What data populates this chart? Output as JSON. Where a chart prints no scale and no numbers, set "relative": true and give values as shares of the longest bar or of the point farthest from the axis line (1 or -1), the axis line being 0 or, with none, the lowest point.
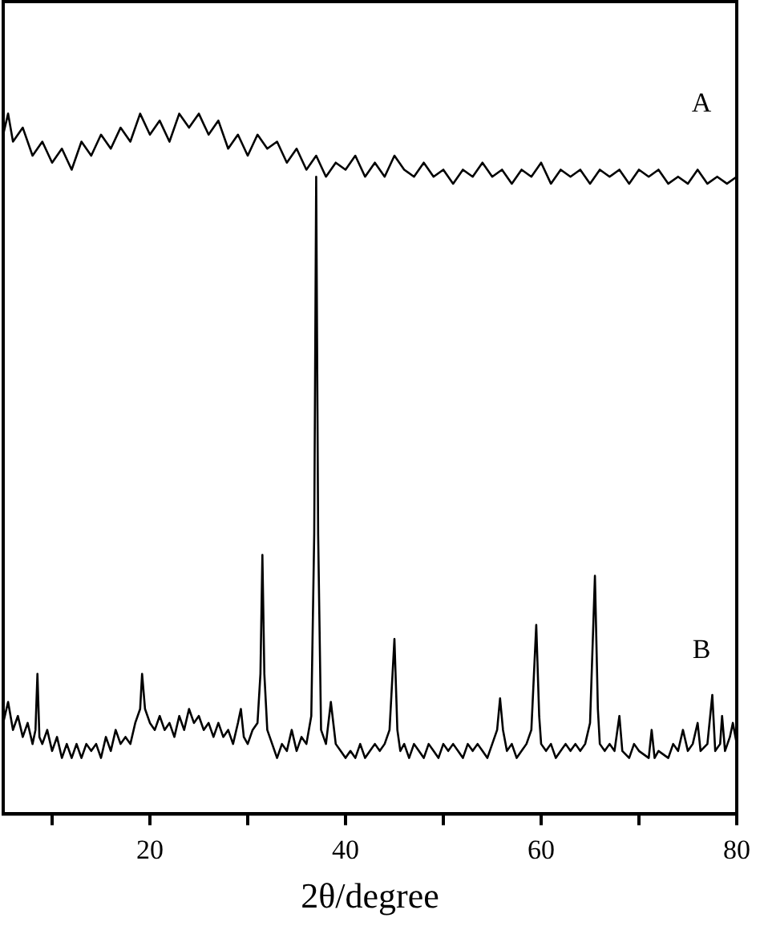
{
  "chart_data": {
    "type": "line",
    "xlabel": "2θ/degree",
    "relative": true,
    "legend": false,
    "grid": false,
    "tick_labels": "x",
    "xlim": [
      5,
      80
    ],
    "xticks": [
      {
        "value": 10,
        "label": null
      },
      20,
      {
        "value": 30,
        "label": null
      },
      40,
      {
        "value": 50,
        "label": null
      },
      60,
      {
        "value": 70,
        "label": null
      },
      80
    ],
    "series": [
      {
        "name": "A",
        "color": "#000000",
        "x": [
          5,
          5.5,
          6,
          7,
          8,
          9,
          10,
          11,
          12,
          13,
          14,
          15,
          16,
          17,
          18,
          19,
          20,
          21,
          22,
          23,
          24,
          25,
          26,
          27,
          28,
          29,
          30,
          31,
          32,
          33,
          34,
          35,
          36,
          37,
          38,
          39,
          40,
          41,
          42,
          43,
          44,
          45,
          46,
          47,
          48,
          49,
          50,
          51,
          52,
          53,
          54,
          55,
          56,
          57,
          58,
          59,
          60,
          61,
          62,
          63,
          64,
          65,
          66,
          67,
          68,
          69,
          70,
          71,
          72,
          73,
          74,
          75,
          76,
          77,
          78,
          79,
          80
        ],
        "values": [
          0.97,
          1.0,
          0.96,
          0.98,
          0.94,
          0.96,
          0.93,
          0.95,
          0.92,
          0.96,
          0.94,
          0.97,
          0.95,
          0.98,
          0.96,
          1.0,
          0.97,
          0.99,
          0.96,
          1.0,
          0.98,
          1.0,
          0.97,
          0.99,
          0.95,
          0.97,
          0.94,
          0.97,
          0.95,
          0.96,
          0.93,
          0.95,
          0.92,
          0.94,
          0.91,
          0.93,
          0.92,
          0.94,
          0.91,
          0.93,
          0.91,
          0.94,
          0.92,
          0.91,
          0.93,
          0.91,
          0.92,
          0.9,
          0.92,
          0.91,
          0.93,
          0.91,
          0.92,
          0.9,
          0.92,
          0.91,
          0.93,
          0.9,
          0.92,
          0.91,
          0.92,
          0.9,
          0.92,
          0.91,
          0.92,
          0.9,
          0.92,
          0.91,
          0.92,
          0.9,
          0.91,
          0.9,
          0.92,
          0.9,
          0.91,
          0.9,
          0.91
        ]
      },
      {
        "name": "B",
        "color": "#000000",
        "x": [
          5,
          5.5,
          6,
          6.5,
          7,
          7.5,
          8,
          8.3,
          8.5,
          8.7,
          9,
          9.5,
          10,
          10.5,
          11,
          11.5,
          12,
          12.5,
          13,
          13.5,
          14,
          14.5,
          15,
          15.5,
          16,
          16.5,
          17,
          17.5,
          18,
          18.5,
          19,
          19.2,
          19.5,
          20,
          20.5,
          21,
          21.5,
          22,
          22.5,
          23,
          23.5,
          24,
          24.5,
          25,
          25.5,
          26,
          26.5,
          27,
          27.5,
          28,
          28.5,
          29,
          29.3,
          29.6,
          30,
          30.5,
          31,
          31.3,
          31.5,
          31.7,
          32,
          32.5,
          33,
          33.5,
          34,
          34.5,
          35,
          35.5,
          36,
          36.5,
          36.8,
          37,
          37.2,
          37.5,
          38,
          38.5,
          39,
          39.5,
          40,
          40.5,
          41,
          41.5,
          42,
          42.5,
          43,
          43.5,
          44,
          44.5,
          45,
          45.3,
          45.6,
          46,
          46.5,
          47,
          47.5,
          48,
          48.5,
          49,
          49.5,
          50,
          50.5,
          51,
          51.5,
          52,
          52.5,
          53,
          53.5,
          54,
          54.5,
          55,
          55.5,
          55.8,
          56.1,
          56.5,
          57,
          57.5,
          58,
          58.5,
          59,
          59.5,
          59.8,
          60,
          60.5,
          61,
          61.5,
          62,
          62.5,
          63,
          63.5,
          64,
          64.5,
          65,
          65.5,
          65.8,
          66,
          66.5,
          67,
          67.5,
          68,
          68.3,
          69,
          69.5,
          70,
          71,
          71.3,
          71.6,
          72,
          73,
          73.5,
          74,
          74.5,
          75,
          75.5,
          76,
          76.3,
          77,
          77.5,
          77.8,
          78.3,
          78.5,
          78.8,
          79.3,
          79.6,
          80
        ],
        "values": [
          0.13,
          0.16,
          0.12,
          0.14,
          0.11,
          0.13,
          0.1,
          0.12,
          0.2,
          0.11,
          0.1,
          0.12,
          0.09,
          0.11,
          0.08,
          0.1,
          0.08,
          0.1,
          0.08,
          0.1,
          0.09,
          0.1,
          0.08,
          0.11,
          0.09,
          0.12,
          0.1,
          0.11,
          0.1,
          0.13,
          0.15,
          0.2,
          0.15,
          0.13,
          0.12,
          0.14,
          0.12,
          0.13,
          0.11,
          0.14,
          0.12,
          0.15,
          0.13,
          0.14,
          0.12,
          0.13,
          0.11,
          0.13,
          0.11,
          0.12,
          0.1,
          0.13,
          0.15,
          0.11,
          0.1,
          0.12,
          0.13,
          0.2,
          0.37,
          0.2,
          0.12,
          0.1,
          0.08,
          0.1,
          0.09,
          0.12,
          0.09,
          0.11,
          0.1,
          0.14,
          0.4,
          0.91,
          0.4,
          0.12,
          0.1,
          0.16,
          0.1,
          0.09,
          0.08,
          0.09,
          0.08,
          0.1,
          0.08,
          0.09,
          0.1,
          0.09,
          0.1,
          0.12,
          0.25,
          0.12,
          0.09,
          0.1,
          0.08,
          0.1,
          0.09,
          0.08,
          0.1,
          0.09,
          0.08,
          0.1,
          0.09,
          0.1,
          0.09,
          0.08,
          0.1,
          0.09,
          0.1,
          0.09,
          0.08,
          0.1,
          0.12,
          0.165,
          0.12,
          0.09,
          0.1,
          0.08,
          0.09,
          0.1,
          0.12,
          0.27,
          0.14,
          0.1,
          0.09,
          0.1,
          0.08,
          0.09,
          0.1,
          0.09,
          0.1,
          0.09,
          0.1,
          0.13,
          0.34,
          0.15,
          0.1,
          0.09,
          0.1,
          0.09,
          0.14,
          0.09,
          0.08,
          0.1,
          0.09,
          0.08,
          0.12,
          0.08,
          0.09,
          0.08,
          0.1,
          0.09,
          0.12,
          0.09,
          0.1,
          0.13,
          0.09,
          0.1,
          0.17,
          0.09,
          0.1,
          0.14,
          0.09,
          0.11,
          0.13,
          0.1
        ]
      }
    ]
  }
}
